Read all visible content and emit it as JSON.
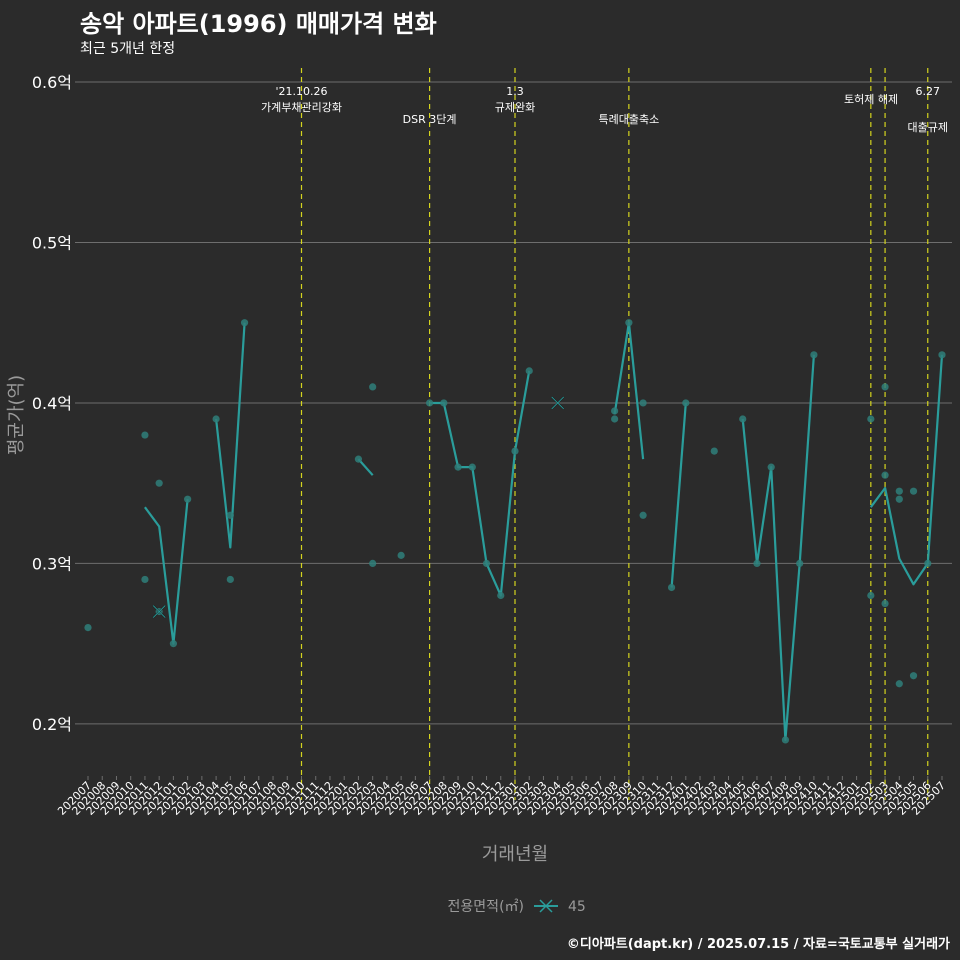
{
  "header": {
    "title": "송악 아파트(1996) 매매가격 변화",
    "subtitle": "최근 5개년 한정"
  },
  "footer": {
    "credit": "©디아파트(dapt.kr) / 2025.07.15 / 자료=국토교통부 실거래가"
  },
  "colors": {
    "background": "#2b2b2b",
    "grid": "#6e6e6e",
    "series": "#2a9d9b",
    "point": "#2f7f7a",
    "event_line": "#d4d41e",
    "text": "#ffffff",
    "axis_title": "#9a9a9a"
  },
  "chart_data": {
    "type": "line",
    "title": "송악 아파트(1996) 매매가격 변화",
    "subtitle": "최근 5개년 한정",
    "xlabel": "거래년월",
    "ylabel": "평균가(억)",
    "ylim": [
      0.17,
      0.61
    ],
    "yticks": [
      0.2,
      0.3,
      0.4,
      0.5,
      0.6
    ],
    "ytick_labels": [
      "0.2억",
      "0.3억",
      "0.4억",
      "0.5억",
      "0.6억"
    ],
    "grid": true,
    "legend": {
      "title": "전용면적(㎡)",
      "entries": [
        "45"
      ],
      "position": "bottom"
    },
    "categories": [
      "202007",
      "202008",
      "202009",
      "202010",
      "202011",
      "202012",
      "202101",
      "202102",
      "202103",
      "202104",
      "202105",
      "202106",
      "202107",
      "202108",
      "202109",
      "202110",
      "202111",
      "202112",
      "202201",
      "202202",
      "202203",
      "202204",
      "202205",
      "202206",
      "202207",
      "202208",
      "202209",
      "202210",
      "202211",
      "202212",
      "202301",
      "202302",
      "202303",
      "202304",
      "202305",
      "202306",
      "202307",
      "202308",
      "202309",
      "202310",
      "202311",
      "202312",
      "202401",
      "202402",
      "202403",
      "202404",
      "202405",
      "202406",
      "202407",
      "202408",
      "202409",
      "202410",
      "202411",
      "202412",
      "202501",
      "202502",
      "202503",
      "202504",
      "202505",
      "202506",
      "202507"
    ],
    "series": [
      {
        "name": "45",
        "line": [
          {
            "x": "202011",
            "y": 0.335
          },
          {
            "x": "202012",
            "y": 0.323
          },
          {
            "x": "202101",
            "y": 0.25
          },
          {
            "x": "202102",
            "y": 0.34
          },
          null,
          {
            "x": "202104",
            "y": 0.39
          },
          {
            "x": "202105",
            "y": 0.31
          },
          {
            "x": "202106",
            "y": 0.45
          },
          null,
          {
            "x": "202202",
            "y": 0.365
          },
          {
            "x": "202203",
            "y": 0.355
          },
          null,
          {
            "x": "202207",
            "y": 0.4
          },
          {
            "x": "202208",
            "y": 0.4
          },
          {
            "x": "202209",
            "y": 0.36
          },
          {
            "x": "202210",
            "y": 0.36
          },
          {
            "x": "202211",
            "y": 0.3
          },
          {
            "x": "202212",
            "y": 0.28
          },
          {
            "x": "202301",
            "y": 0.37
          },
          {
            "x": "202302",
            "y": 0.42
          },
          null,
          {
            "x": "202308",
            "y": 0.393
          },
          {
            "x": "202309",
            "y": 0.45
          },
          {
            "x": "202310",
            "y": 0.365
          },
          null,
          {
            "x": "202312",
            "y": 0.285
          },
          {
            "x": "202401",
            "y": 0.4
          },
          null,
          {
            "x": "202405",
            "y": 0.39
          },
          {
            "x": "202406",
            "y": 0.3
          },
          {
            "x": "202407",
            "y": 0.36
          },
          {
            "x": "202408",
            "y": 0.19
          },
          {
            "x": "202409",
            "y": 0.3
          },
          {
            "x": "202410",
            "y": 0.43
          },
          null,
          {
            "x": "202502",
            "y": 0.335
          },
          {
            "x": "202503",
            "y": 0.347
          },
          {
            "x": "202504",
            "y": 0.303
          },
          {
            "x": "202505",
            "y": 0.287
          },
          {
            "x": "202506",
            "y": 0.3
          },
          {
            "x": "202507",
            "y": 0.43
          }
        ],
        "points": [
          {
            "x": "202007",
            "y": 0.26
          },
          {
            "x": "202011",
            "y": 0.38
          },
          {
            "x": "202011",
            "y": 0.29
          },
          {
            "x": "202012",
            "y": 0.35
          },
          {
            "x": "202012",
            "y": 0.27
          },
          {
            "x": "202101",
            "y": 0.25
          },
          {
            "x": "202102",
            "y": 0.34
          },
          {
            "x": "202104",
            "y": 0.39
          },
          {
            "x": "202105",
            "y": 0.33
          },
          {
            "x": "202105",
            "y": 0.29
          },
          {
            "x": "202106",
            "y": 0.45
          },
          {
            "x": "202202",
            "y": 0.365
          },
          {
            "x": "202203",
            "y": 0.41
          },
          {
            "x": "202203",
            "y": 0.3
          },
          {
            "x": "202205",
            "y": 0.305
          },
          {
            "x": "202207",
            "y": 0.4
          },
          {
            "x": "202208",
            "y": 0.4
          },
          {
            "x": "202209",
            "y": 0.36
          },
          {
            "x": "202210",
            "y": 0.36
          },
          {
            "x": "202211",
            "y": 0.3
          },
          {
            "x": "202212",
            "y": 0.28
          },
          {
            "x": "202301",
            "y": 0.37
          },
          {
            "x": "202302",
            "y": 0.42
          },
          {
            "x": "202308",
            "y": 0.395
          },
          {
            "x": "202308",
            "y": 0.39
          },
          {
            "x": "202309",
            "y": 0.45
          },
          {
            "x": "202310",
            "y": 0.4
          },
          {
            "x": "202310",
            "y": 0.33
          },
          {
            "x": "202312",
            "y": 0.285
          },
          {
            "x": "202401",
            "y": 0.4
          },
          {
            "x": "202403",
            "y": 0.37
          },
          {
            "x": "202405",
            "y": 0.39
          },
          {
            "x": "202406",
            "y": 0.3
          },
          {
            "x": "202407",
            "y": 0.36
          },
          {
            "x": "202408",
            "y": 0.19
          },
          {
            "x": "202409",
            "y": 0.3
          },
          {
            "x": "202410",
            "y": 0.43
          },
          {
            "x": "202502",
            "y": 0.39
          },
          {
            "x": "202502",
            "y": 0.28
          },
          {
            "x": "202503",
            "y": 0.41
          },
          {
            "x": "202503",
            "y": 0.355
          },
          {
            "x": "202503",
            "y": 0.275
          },
          {
            "x": "202504",
            "y": 0.345
          },
          {
            "x": "202504",
            "y": 0.34
          },
          {
            "x": "202504",
            "y": 0.225
          },
          {
            "x": "202505",
            "y": 0.345
          },
          {
            "x": "202505",
            "y": 0.23
          },
          {
            "x": "202506",
            "y": 0.3
          },
          {
            "x": "202507",
            "y": 0.43
          }
        ],
        "crosses": [
          {
            "x": "202012",
            "y": 0.27
          },
          {
            "x": "202304",
            "y": 0.4
          }
        ]
      }
    ],
    "events": [
      {
        "x": "202110",
        "label_top": "'21.10.26",
        "label_bottom": "가계부채관리강화"
      },
      {
        "x": "202207",
        "label_top": "",
        "label_bottom": "DSR 3단계"
      },
      {
        "x": "202301",
        "label_top": "1.3",
        "label_bottom": "규제완화"
      },
      {
        "x": "202309",
        "label_top": "",
        "label_bottom": "특례대출축소"
      },
      {
        "x": "202502",
        "label_top": "",
        "label_bottom": ""
      },
      {
        "x": "202503",
        "label_top": "",
        "label_bottom": "토허제 해제"
      },
      {
        "x": "202506",
        "label_top": "6.27",
        "label_bottom": "대출규제"
      }
    ]
  }
}
